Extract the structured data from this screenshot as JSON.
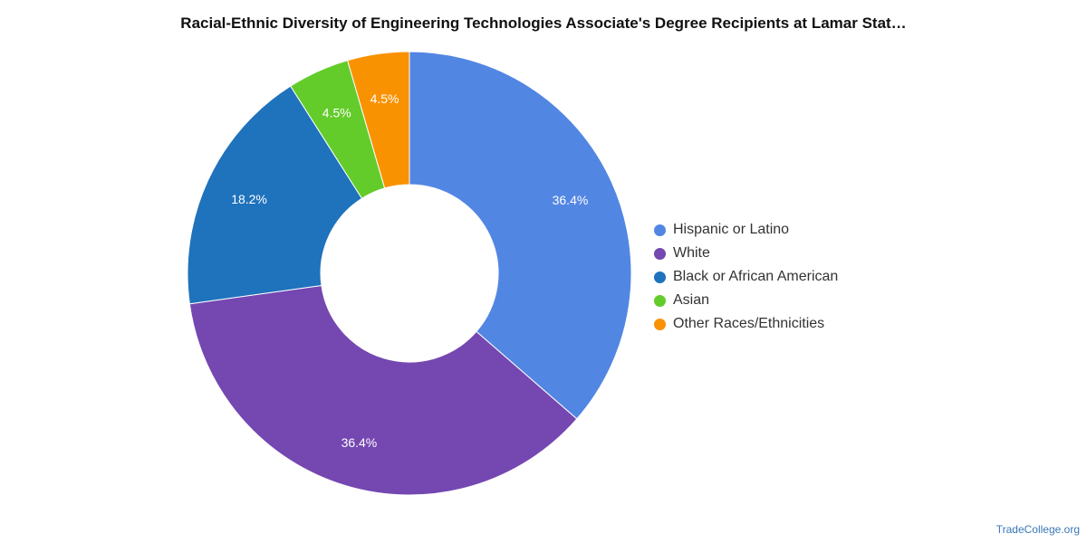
{
  "chart_data": {
    "type": "pie",
    "variant": "donut",
    "title": "Racial-Ethnic Diversity of Engineering Technologies Associate's Degree Recipients at Lamar Stat…",
    "categories": [
      "Hispanic or Latino",
      "White",
      "Black or African American",
      "Asian",
      "Other Races/Ethnicities"
    ],
    "values": [
      36.4,
      36.4,
      18.2,
      4.5,
      4.5
    ],
    "labels": [
      "36.4%",
      "36.4%",
      "18.2%",
      "4.5%",
      "4.5%"
    ],
    "colors": [
      "#5286e3",
      "#7447b1",
      "#1f72bc",
      "#63cc2b",
      "#f99200"
    ],
    "legend": {
      "position": "right"
    }
  },
  "credit": "TradeCollege.org"
}
